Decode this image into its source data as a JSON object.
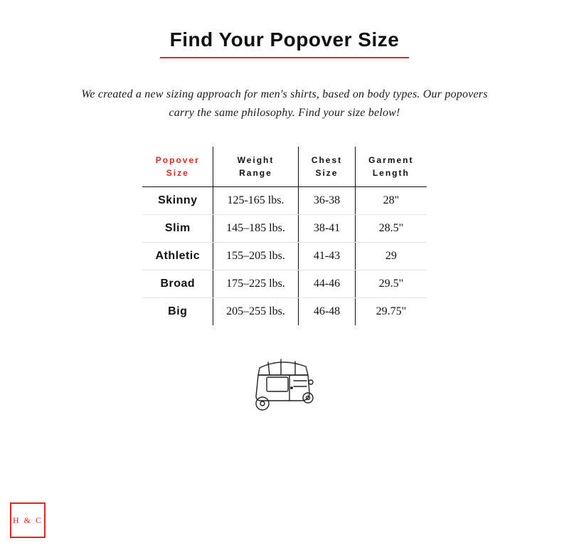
{
  "colors": {
    "accent": "#e4251b",
    "text": "#111111",
    "tableRowDivider": "#e3e3e3",
    "background": "#ffffff"
  },
  "title": "Find Your Popover Size",
  "subtitle": "We created a new sizing approach for men's shirts, based on body types. Our popovers carry the same philosophy. Find your size below!",
  "table": {
    "columns": [
      {
        "line1": "Popover",
        "line2": "Size",
        "highlighted": true
      },
      {
        "line1": "Weight",
        "line2": "Range",
        "highlighted": false
      },
      {
        "line1": "Chest",
        "line2": "Size",
        "highlighted": false
      },
      {
        "line1": "Garment",
        "line2": "Length",
        "highlighted": false
      }
    ],
    "rows": [
      {
        "size": "Skinny",
        "weight": "125-165 lbs.",
        "chest": "36-38",
        "length": "28\""
      },
      {
        "size": "Slim",
        "weight": "145–185 lbs.",
        "chest": "38-41",
        "length": "28.5\""
      },
      {
        "size": "Athletic",
        "weight": "155–205 lbs.",
        "chest": "41-43",
        "length": "29"
      },
      {
        "size": "Broad",
        "weight": "175–225 lbs.",
        "chest": "44-46",
        "length": "29.5\""
      },
      {
        "size": "Big",
        "weight": "205–255 lbs.",
        "chest": "46-48",
        "length": "29.75\""
      }
    ]
  },
  "illustration": {
    "name": "auto-rickshaw-sketch"
  },
  "logo": {
    "text": "H & C"
  }
}
